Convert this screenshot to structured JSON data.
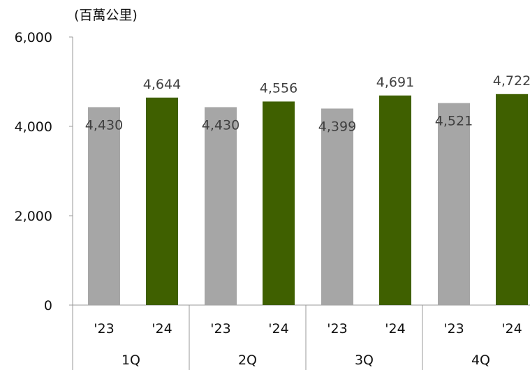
{
  "chart_data": {
    "type": "bar",
    "unit_label": "(百萬公里)",
    "yticks": [
      "0",
      "2,000",
      "4,000",
      "6,000"
    ],
    "ytick_values": [
      0,
      2000,
      4000,
      6000
    ],
    "ylim": [
      0,
      6000
    ],
    "grid": false,
    "groups": [
      {
        "label": "1Q",
        "bars": [
          {
            "label": "'23",
            "value": 4430,
            "value_label": "4,430"
          },
          {
            "label": "'24",
            "value": 4644,
            "value_label": "4,644"
          }
        ]
      },
      {
        "label": "2Q",
        "bars": [
          {
            "label": "'23",
            "value": 4430,
            "value_label": "4,430"
          },
          {
            "label": "'24",
            "value": 4556,
            "value_label": "4,556"
          }
        ]
      },
      {
        "label": "3Q",
        "bars": [
          {
            "label": "'23",
            "value": 4399,
            "value_label": "4,399"
          },
          {
            "label": "'24",
            "value": 4691,
            "value_label": "4,691"
          }
        ]
      },
      {
        "label": "4Q",
        "bars": [
          {
            "label": "'23",
            "value": 4521,
            "value_label": "4,521"
          },
          {
            "label": "'24",
            "value": 4722,
            "value_label": "4,722"
          }
        ]
      }
    ],
    "colors": {
      "prior_year": "#A6A6A6",
      "current_year": "#3F6000",
      "axis": "#999999"
    }
  }
}
